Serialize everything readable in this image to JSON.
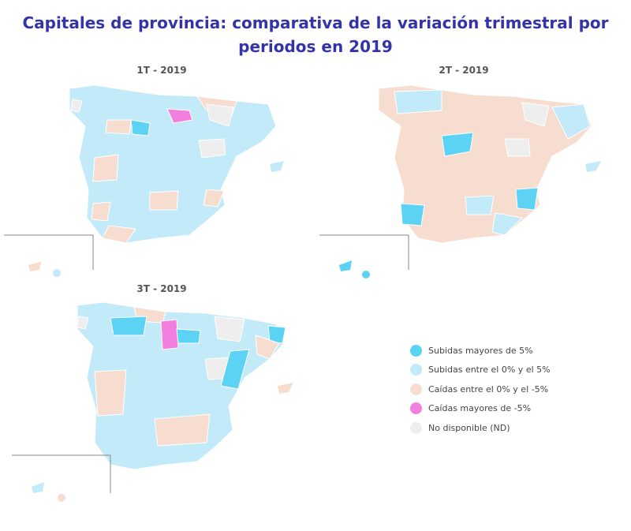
{
  "title": "Capitales de provincia: comparativa de la variación trimestral por periodos en 2019",
  "colors": {
    "subidas_mayores_5": "#5cd2f5",
    "subidas_0_5": "#c3eaf8",
    "caidas_0_5": "#f7ddcf",
    "caidas_mayores_5": "#f27ee0",
    "no_disponible": "#eeeeee"
  },
  "maps": [
    {
      "label": "1T - 2019"
    },
    {
      "label": "2T - 2019"
    },
    {
      "label": "3T - 2019"
    }
  ],
  "legend": [
    {
      "label": "Subidas mayores de 5%",
      "color": "#5cd2f5"
    },
    {
      "label": "Subidas entre el 0% y el 5%",
      "color": "#c3eaf8"
    },
    {
      "label": "Caídas entre el 0% y el -5%",
      "color": "#f7ddcf"
    },
    {
      "label": "Caídas mayores de -5%",
      "color": "#f27ee0"
    },
    {
      "label": "No disponible (ND)",
      "color": "#eeeeee"
    }
  ]
}
